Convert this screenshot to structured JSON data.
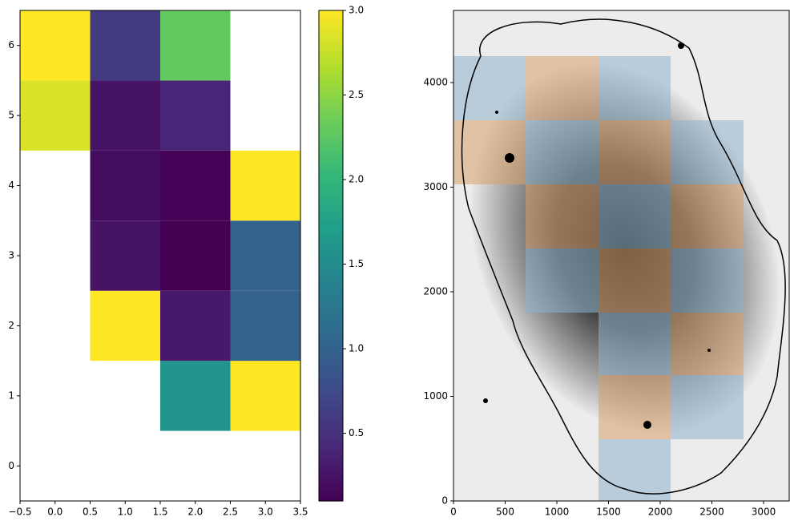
{
  "chart_data": [
    {
      "type": "heatmap",
      "x": [
        0,
        1,
        2,
        3
      ],
      "y": [
        0,
        1,
        2,
        3,
        4,
        5,
        6
      ],
      "values": [
        [
          null,
          null,
          null,
          null
        ],
        [
          null,
          null,
          1.6,
          3.0
        ],
        [
          null,
          3.0,
          0.3,
          1.0
        ],
        [
          null,
          0.25,
          0.1,
          1.0
        ],
        [
          null,
          0.2,
          0.12,
          3.0
        ],
        [
          2.85,
          0.25,
          0.4,
          null
        ],
        [
          3.0,
          0.6,
          2.3,
          null
        ]
      ],
      "xlim": [
        -0.5,
        3.5
      ],
      "ylim": [
        -0.5,
        6.5
      ],
      "xticks": [
        {
          "value": -0.5,
          "label": "−0.5"
        },
        {
          "value": 0,
          "label": "0.0"
        },
        0.5,
        {
          "value": 1,
          "label": "1.0"
        },
        1.5,
        {
          "value": 2,
          "label": "2.0"
        },
        2.5,
        {
          "value": 3,
          "label": "3.0"
        },
        3.5
      ],
      "yticks": [
        0,
        1,
        2,
        3,
        4,
        5,
        6
      ],
      "colormap": "viridis",
      "clim": [
        0.1,
        3.0
      ],
      "cticks": [
        0.5,
        {
          "value": 1,
          "label": "1.0"
        },
        1.5,
        {
          "value": 2,
          "label": "2.0"
        },
        2.5,
        {
          "value": 3,
          "label": "3.0"
        }
      ]
    },
    {
      "type": "image",
      "xlim": [
        0,
        3248
      ],
      "ylim": [
        0,
        4690
      ],
      "xticks": [
        0,
        500,
        1000,
        1500,
        2000,
        2500,
        3000
      ],
      "yticks": [
        0,
        1000,
        2000,
        3000,
        4000
      ]
    }
  ]
}
